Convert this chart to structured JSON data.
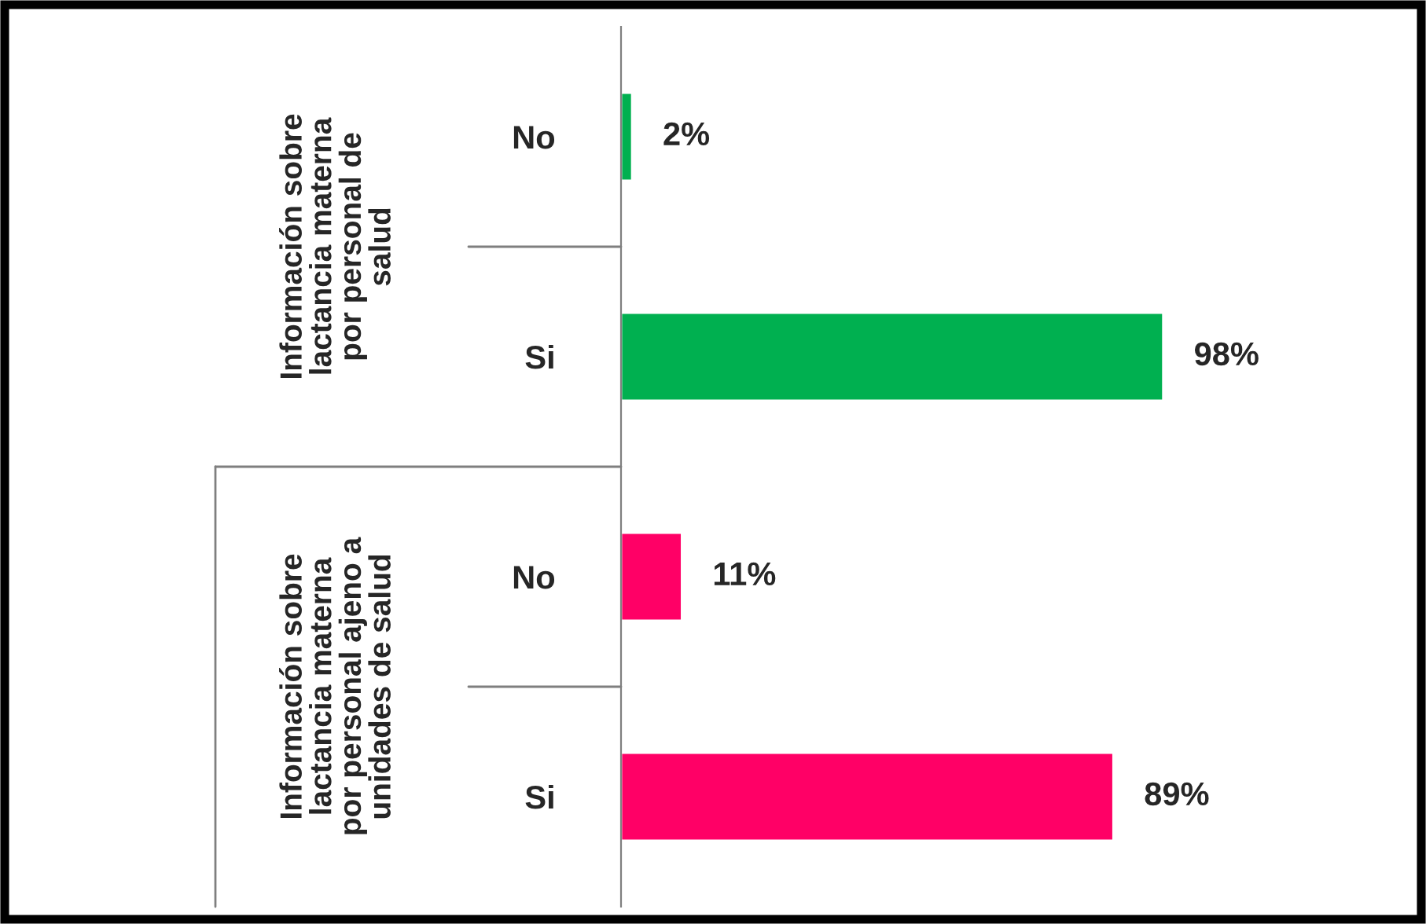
{
  "chart_data": {
    "type": "bar",
    "orientation": "horizontal",
    "categories": [
      "No",
      "Si",
      "No",
      "Si"
    ],
    "values": [
      2,
      98,
      11,
      89
    ],
    "colors": [
      "#00b050",
      "#00b050",
      "#ff0066",
      "#ff0066"
    ],
    "value_labels": [
      "2%",
      "98%",
      "11%",
      "89%"
    ],
    "tick_labels": "y",
    "grid": false,
    "annotations": [
      "Información sobre\nlactancia materna\npor personal de\nsalud",
      "Información sobre\nlactancia materna\npor personal ajeno a\nunidades de salud"
    ]
  }
}
